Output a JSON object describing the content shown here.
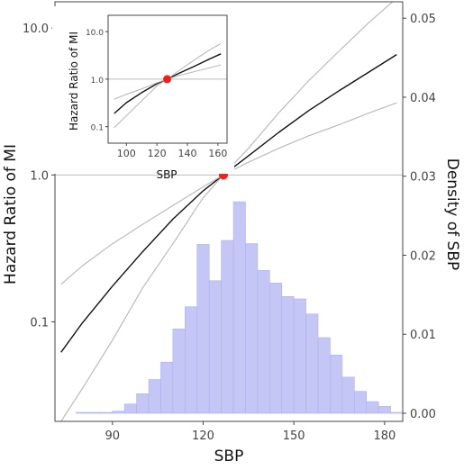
{
  "chart_data": [
    {
      "type": "line+histogram",
      "title": "",
      "xlabel": "SBP",
      "ylabel": "Hazard Ratio of MI",
      "y2label": "Density of SBP",
      "xlim": [
        71,
        186
      ],
      "xticks": [
        90,
        120,
        150,
        180
      ],
      "xtick_labels": [
        "90",
        "120",
        "150",
        "180"
      ],
      "ylim": [
        0.021,
        15.1
      ],
      "yscale": "log",
      "yticks": [
        0.1,
        1.0,
        10.0
      ],
      "ytick_labels": [
        "0.1",
        "1.0",
        "10.0"
      ],
      "y2lim": [
        0,
        0.0531
      ],
      "y2ticks": [
        0,
        0.01,
        0.02,
        0.03,
        0.04,
        0.05
      ],
      "y2tick_labels": [
        "0.00",
        "0.01",
        "0.02",
        "0.03",
        "0.04",
        "0.05"
      ],
      "grid": false,
      "reference_line_y": 1.0,
      "reference_point": {
        "x": 126.7,
        "y": 1.0,
        "color": "#ff1a1a"
      },
      "series": [
        {
          "role": "estimate",
          "color": "#111111",
          "x": [
            73,
            80,
            90,
            100,
            110,
            120,
            126.7,
            135,
            145,
            155,
            165,
            175,
            184
          ],
          "y": [
            0.062,
            0.098,
            0.175,
            0.3,
            0.5,
            0.78,
            1.0,
            1.35,
            1.95,
            2.75,
            3.75,
            5.05,
            6.6
          ]
        },
        {
          "role": "upper 95% CI",
          "color": "#bbbbbb",
          "x": [
            73,
            80,
            90,
            100,
            110,
            120,
            126.7,
            135,
            145,
            155,
            165,
            175,
            184
          ],
          "y": [
            0.18,
            0.24,
            0.34,
            0.46,
            0.62,
            0.83,
            1.0,
            1.52,
            2.65,
            4.4,
            7.0,
            11.0,
            16.0
          ]
        },
        {
          "role": "lower 95% CI",
          "color": "#bbbbbb",
          "x": [
            73,
            80,
            90,
            100,
            110,
            120,
            126.7,
            135,
            145,
            155,
            165,
            175,
            184
          ],
          "y": [
            0.021,
            0.035,
            0.075,
            0.17,
            0.34,
            0.7,
            1.0,
            1.22,
            1.52,
            1.85,
            2.2,
            2.65,
            3.1
          ]
        },
        {
          "role": "histogram",
          "color": "#c4c6f5",
          "bin_width": 4,
          "bin_starts": [
            70,
            74,
            78,
            82,
            86,
            90,
            94,
            98,
            102,
            106,
            110,
            114,
            118,
            122,
            126,
            130,
            134,
            138,
            142,
            146,
            150,
            154,
            158,
            162,
            166,
            170,
            174,
            178,
            182
          ],
          "values": [
            0,
            0,
            0.0001,
            0.0003,
            0.0006,
            0.0013,
            0.0022,
            0.0035,
            0.0053,
            0.0075,
            0.0117,
            0.0145,
            0.0224,
            0.0178,
            0.0229,
            0.0278,
            0.0225,
            0.0191,
            0.0175,
            0.0158,
            0.0155,
            0.0136,
            0.0106,
            0.0084,
            0.0056,
            0.0038,
            0.0025,
            0.0019,
            0.0011
          ]
        }
      ]
    },
    {
      "type": "line",
      "title": "",
      "xlabel": "SBP",
      "ylabel": "Hazard Ratio of MI",
      "xlim": [
        88,
        166
      ],
      "xticks": [
        100,
        120,
        140,
        160
      ],
      "xtick_labels": [
        "100",
        "120",
        "140",
        "160"
      ],
      "ylim": [
        0.045,
        22
      ],
      "yscale": "log",
      "yticks": [
        0.1,
        1.0,
        10.0
      ],
      "ytick_labels": [
        "0.1",
        "1.0",
        "10.0"
      ],
      "grid": false,
      "reference_line_y": 1.0,
      "reference_point": {
        "x": 126.7,
        "y": 1.0,
        "color": "#ff1a1a"
      },
      "series": [
        {
          "role": "estimate",
          "color": "#111111",
          "x": [
            92,
            100,
            110,
            120,
            126.7,
            135,
            145,
            155,
            162
          ],
          "y": [
            0.19,
            0.32,
            0.52,
            0.8,
            1.0,
            1.35,
            1.9,
            2.7,
            3.4
          ]
        },
        {
          "role": "upper 95% CI",
          "color": "#bbbbbb",
          "x": [
            92,
            100,
            110,
            120,
            126.7,
            135,
            145,
            155,
            162
          ],
          "y": [
            0.38,
            0.48,
            0.62,
            0.84,
            1.0,
            1.55,
            2.6,
            4.2,
            5.6
          ]
        },
        {
          "role": "lower 95% CI",
          "color": "#bbbbbb",
          "x": [
            92,
            100,
            110,
            120,
            126.7,
            135,
            145,
            155,
            162
          ],
          "y": [
            0.095,
            0.17,
            0.35,
            0.72,
            1.0,
            1.2,
            1.45,
            1.75,
            2.0
          ]
        }
      ]
    }
  ]
}
